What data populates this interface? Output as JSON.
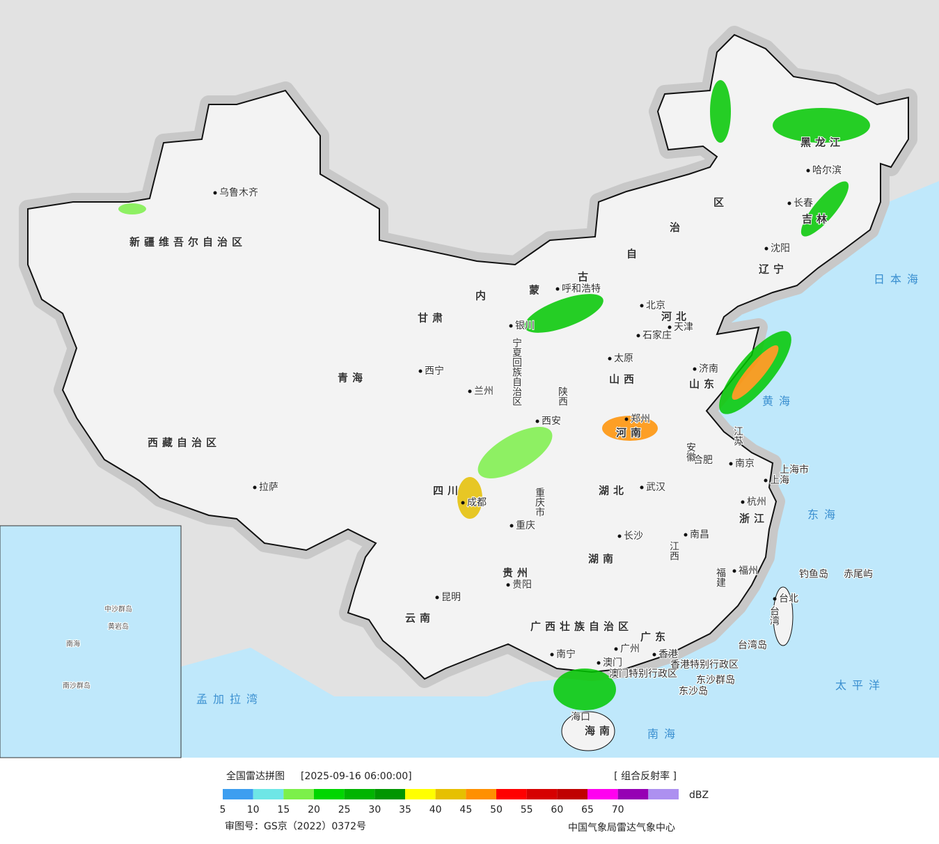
{
  "map_labels": [
    "乌鲁木齐",
    "新疆维吾尔自治区",
    "西藏自治区",
    "拉萨",
    "青海",
    "西宁",
    "甘肃",
    "内",
    "蒙",
    "古",
    "自",
    "治",
    "区",
    "呼和浩特",
    "黑龙江",
    "哈尔滨",
    "吉林",
    "长春",
    "沈阳",
    "辽宁",
    "北京",
    "天津",
    "河北",
    "石家庄",
    "太原",
    "山西",
    "银川",
    "宁夏回族自治区",
    "兰州",
    "西安",
    "陕西",
    "济南",
    "山东",
    "郑州",
    "河南",
    "合肥",
    "安徽",
    "南京",
    "江苏",
    "上海市",
    "上海",
    "杭州",
    "浙江",
    "武汉",
    "湖北",
    "四川",
    "成都",
    "重庆市",
    "重庆",
    "长沙",
    "湖南",
    "南昌",
    "江西",
    "福州",
    "福建",
    "贵州",
    "贵阳",
    "昆明",
    "云南",
    "广西壮族自治区",
    "南宁",
    "广东",
    "广州",
    "香港",
    "澳门",
    "香港特别行政区",
    "澳门特别行政区",
    "海口",
    "海南",
    "台北",
    "台湾",
    "台湾岛",
    "钓鱼岛",
    "赤尾屿",
    "东沙群岛",
    "东沙岛",
    "日本海",
    "黄海",
    "东海",
    "太平洋",
    "南海",
    "孟加拉湾",
    "南海",
    "中沙群岛",
    "南沙群岛",
    "黄岩岛"
  ],
  "legend": {
    "title": "全国雷达拼图",
    "time": "[2025-09-16 06:00:00]",
    "product": "[ 组合反射率 ]",
    "unit": "dBZ",
    "ticks": [
      5,
      10,
      15,
      20,
      25,
      30,
      35,
      40,
      45,
      50,
      55,
      60,
      65,
      70
    ],
    "colors": [
      "#3d9ef0",
      "#6ee6e6",
      "#7cf04a",
      "#00d600",
      "#00b400",
      "#009600",
      "#ffff00",
      "#e6c000",
      "#ff9000",
      "#ff0000",
      "#d60000",
      "#c00000",
      "#ff00f0",
      "#9600b4",
      "#ad90f0"
    ]
  },
  "footer": {
    "approval": "审图号：GS京（2022）0372号",
    "source": "中国气象局雷达气象中心"
  }
}
